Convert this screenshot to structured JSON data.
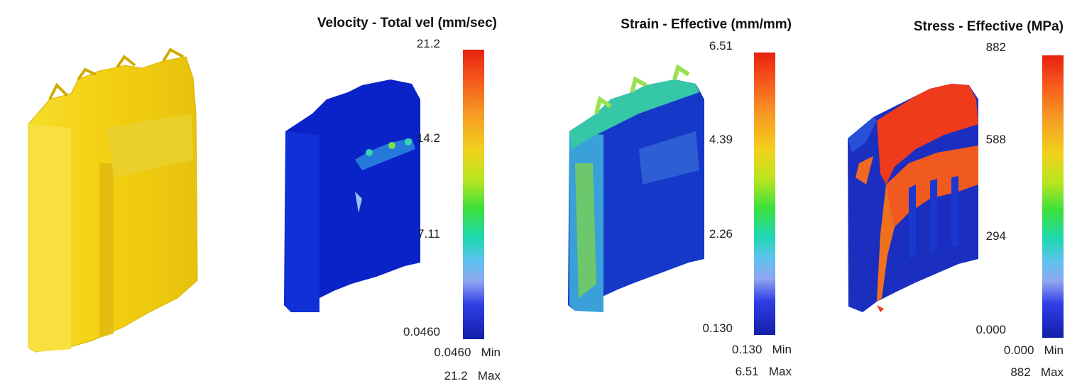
{
  "panels": [
    {
      "title": "",
      "legend": null
    },
    {
      "title": "Velocity - Total vel (mm/sec)",
      "ticks": [
        "21.2",
        "14.2",
        "7.11",
        "0.0460"
      ],
      "min_value": "0.0460",
      "min_label": "Min",
      "max_value": "21.2",
      "max_label": "Max"
    },
    {
      "title": "Strain - Effective (mm/mm)",
      "ticks": [
        "6.51",
        "4.39",
        "2.26",
        "0.130"
      ],
      "min_value": "0.130",
      "min_label": "Min",
      "max_value": "6.51",
      "max_label": "Max"
    },
    {
      "title": "Stress - Effective (MPa)",
      "ticks": [
        "882",
        "588",
        "294",
        "0.000"
      ],
      "min_value": "0.000",
      "min_label": "Min",
      "max_value": "882",
      "max_label": "Max"
    }
  ],
  "colors": {
    "geometry": "#f4d21a",
    "velocity_body": "#0a23c8",
    "strain_body": "#1538c8",
    "stress_body": "#1a2fbf",
    "hot": "#ef3a1c"
  }
}
